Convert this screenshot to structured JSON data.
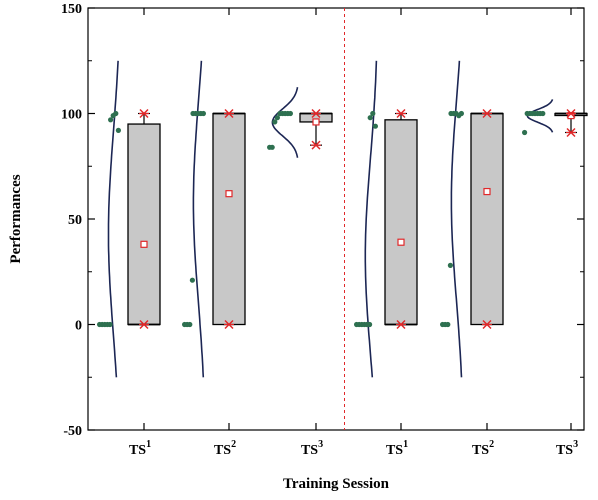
{
  "chart_data": {
    "type": "box",
    "xlabel": "Training Session",
    "ylabel": "Performances",
    "ylim": [
      -50,
      150
    ],
    "yticks": [
      -50,
      0,
      50,
      100,
      150
    ],
    "divider_after_group": 3,
    "colors": {
      "box_fill": "#c8c8c8",
      "box_stroke": "#000000",
      "points": "#2e7050",
      "curve": "#1c2654",
      "marker": "#e0282a",
      "divider": "#e0282a"
    },
    "groups": [
      {
        "label": "TS",
        "sup": "1",
        "q1": 0,
        "q3": 95,
        "median": 0,
        "mean": 38,
        "min": 0,
        "max": 100,
        "points": [
          [
            0,
            0
          ],
          [
            0,
            0
          ],
          [
            0,
            0
          ],
          [
            0,
            0
          ],
          [
            0,
            0
          ],
          [
            0,
            97
          ],
          [
            0,
            99
          ],
          [
            0,
            100
          ],
          [
            0,
            92
          ]
        ]
      },
      {
        "label": "TS",
        "sup": "2",
        "q1": 0,
        "q3": 100,
        "median": 100,
        "mean": 62,
        "min": 0,
        "max": 100,
        "points": [
          [
            0,
            0
          ],
          [
            0,
            0
          ],
          [
            0,
            0
          ],
          [
            0,
            21
          ],
          [
            0,
            100
          ],
          [
            0,
            100
          ],
          [
            0,
            100
          ],
          [
            0,
            100
          ],
          [
            0,
            100
          ]
        ]
      },
      {
        "label": "TS",
        "sup": "3",
        "q1": 96,
        "q3": 100,
        "median": 100,
        "mean": 96,
        "min": 85,
        "max": 100,
        "points": [
          [
            0,
            84
          ],
          [
            0,
            84
          ],
          [
            0,
            96
          ],
          [
            0,
            98
          ],
          [
            0,
            100
          ],
          [
            0,
            100
          ],
          [
            0,
            100
          ],
          [
            0,
            100
          ],
          [
            0,
            100
          ]
        ]
      },
      {
        "label": "TS",
        "sup": "1",
        "q1": 0,
        "q3": 97,
        "median": 0,
        "mean": 39,
        "min": 0,
        "max": 100,
        "points": [
          [
            0,
            0
          ],
          [
            0,
            0
          ],
          [
            0,
            0
          ],
          [
            0,
            0
          ],
          [
            0,
            0
          ],
          [
            0,
            0
          ],
          [
            0,
            98
          ],
          [
            0,
            100
          ],
          [
            0,
            94
          ]
        ]
      },
      {
        "label": "TS",
        "sup": "2",
        "q1": 0,
        "q3": 100,
        "median": 100,
        "mean": 63,
        "min": 0,
        "max": 100,
        "points": [
          [
            0,
            0
          ],
          [
            0,
            0
          ],
          [
            0,
            0
          ],
          [
            0,
            28
          ],
          [
            0,
            100
          ],
          [
            0,
            100
          ],
          [
            0,
            100
          ],
          [
            0,
            99
          ],
          [
            0,
            100
          ]
        ]
      },
      {
        "label": "TS",
        "sup": "3",
        "q1": 100,
        "q3": 100,
        "median": 100,
        "mean": 99,
        "min": 91,
        "max": 100,
        "points": [
          [
            0,
            91
          ],
          [
            0,
            100
          ],
          [
            0,
            100
          ],
          [
            0,
            100
          ],
          [
            0,
            100
          ],
          [
            0,
            100
          ],
          [
            0,
            100
          ],
          [
            0,
            100
          ]
        ]
      }
    ]
  }
}
